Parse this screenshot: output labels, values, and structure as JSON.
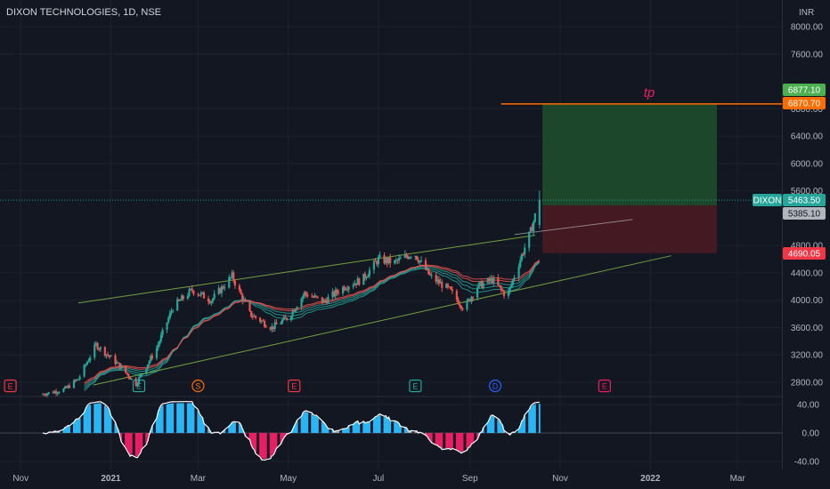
{
  "header": {
    "title": "DIXON TECHNOLOGIES, 1D, NSE"
  },
  "colors": {
    "background": "#131722",
    "up": "#26a69a",
    "down": "#ef5350",
    "grid": "#1e222d",
    "axis_text": "#b2b5be",
    "target_zone": "#1e4d2b",
    "stop_zone": "#4a1a22",
    "tp_line": "#ff6d00",
    "tp_text": "#e91e63",
    "channel": "#8bc34a",
    "osc_up": "#29b6f6",
    "osc_down": "#e91e63",
    "osc_neutral": "#9e9e9e"
  },
  "chart_data": [
    {
      "type": "candlestick",
      "title": "DIXON TECHNOLOGIES, 1D, NSE",
      "currency": "INR",
      "y_ticks": [
        "8000.00",
        "7600.00",
        "6800.00",
        "6400.00",
        "6000.00",
        "5600.00",
        "4800.00",
        "4400.00",
        "4000.00",
        "3600.00",
        "3200.00",
        "2800.00"
      ],
      "ylim": [
        2600,
        8200
      ],
      "x_ticks": [
        "Nov",
        "2021",
        "Mar",
        "May",
        "Jul",
        "Sep",
        "Nov",
        "2022",
        "Mar"
      ],
      "price_path": [
        [
          "2020-11-15",
          2620
        ],
        [
          "2020-12-01",
          2700
        ],
        [
          "2020-12-10",
          2850
        ],
        [
          "2020-12-22",
          3350
        ],
        [
          "2021-01-05",
          3080
        ],
        [
          "2021-01-18",
          2780
        ],
        [
          "2021-02-01",
          3300
        ],
        [
          "2021-02-12",
          3900
        ],
        [
          "2021-02-25",
          4150
        ],
        [
          "2021-03-10",
          4000
        ],
        [
          "2021-03-24",
          4350
        ],
        [
          "2021-04-05",
          3800
        ],
        [
          "2021-04-20",
          3600
        ],
        [
          "2021-05-01",
          3750
        ],
        [
          "2021-05-12",
          4100
        ],
        [
          "2021-05-25",
          3980
        ],
        [
          "2021-06-08",
          4200
        ],
        [
          "2021-06-20",
          4300
        ],
        [
          "2021-07-01",
          4600
        ],
        [
          "2021-07-12",
          4550
        ],
        [
          "2021-07-25",
          4700
        ],
        [
          "2021-08-05",
          4350
        ],
        [
          "2021-08-18",
          4150
        ],
        [
          "2021-08-28",
          3880
        ],
        [
          "2021-09-06",
          4200
        ],
        [
          "2021-09-16",
          4300
        ],
        [
          "2021-09-26",
          4050
        ],
        [
          "2021-10-05",
          4600
        ],
        [
          "2021-10-12",
          5000
        ],
        [
          "2021-10-18",
          5463.5
        ]
      ],
      "last_price_label": "DIXON",
      "last_price": "5463.50",
      "price_marks": [
        {
          "value": "6877.10",
          "color": "#4caf50"
        },
        {
          "value": "6870.70",
          "color": "#ff6d00"
        },
        {
          "value": "5385.10",
          "color": "#b2b5be"
        },
        {
          "value": "4690.05",
          "color": "#f23645"
        }
      ],
      "annotation": "tp",
      "tp_level": 6870.7,
      "position": {
        "start": "2021-10-20",
        "end": "2022-02-15",
        "entry": 5385.1,
        "target": 6877.1,
        "stop": 4690.05
      },
      "channel_upper": [
        [
          "2020-12-10",
          3960
        ],
        [
          "2021-10-15",
          4950
        ]
      ],
      "channel_lower": [
        [
          "2020-12-20",
          2760
        ],
        [
          "2022-01-15",
          4650
        ]
      ],
      "channel_mid": [
        [
          "2021-10-01",
          4960
        ],
        [
          "2021-12-20",
          5180
        ]
      ],
      "events": [
        {
          "date": "2020-10-25",
          "letter": "E",
          "color": "#f23645"
        },
        {
          "date": "2021-01-20",
          "letter": "E",
          "color": "#26a69a"
        },
        {
          "date": "2021-03-01",
          "letter": "S",
          "color": "#ff6d00"
        },
        {
          "date": "2021-05-05",
          "letter": "E",
          "color": "#f23645"
        },
        {
          "date": "2021-07-26",
          "letter": "E",
          "color": "#26a69a"
        },
        {
          "date": "2021-09-18",
          "letter": "D",
          "color": "#2962ff"
        },
        {
          "date": "2021-12-01",
          "letter": "E",
          "color": "#e91e63"
        }
      ]
    },
    {
      "type": "bar",
      "title": "",
      "y_ticks": [
        "40.00",
        "0.00",
        "-40.00"
      ],
      "ylim": [
        -45,
        45
      ]
    }
  ]
}
